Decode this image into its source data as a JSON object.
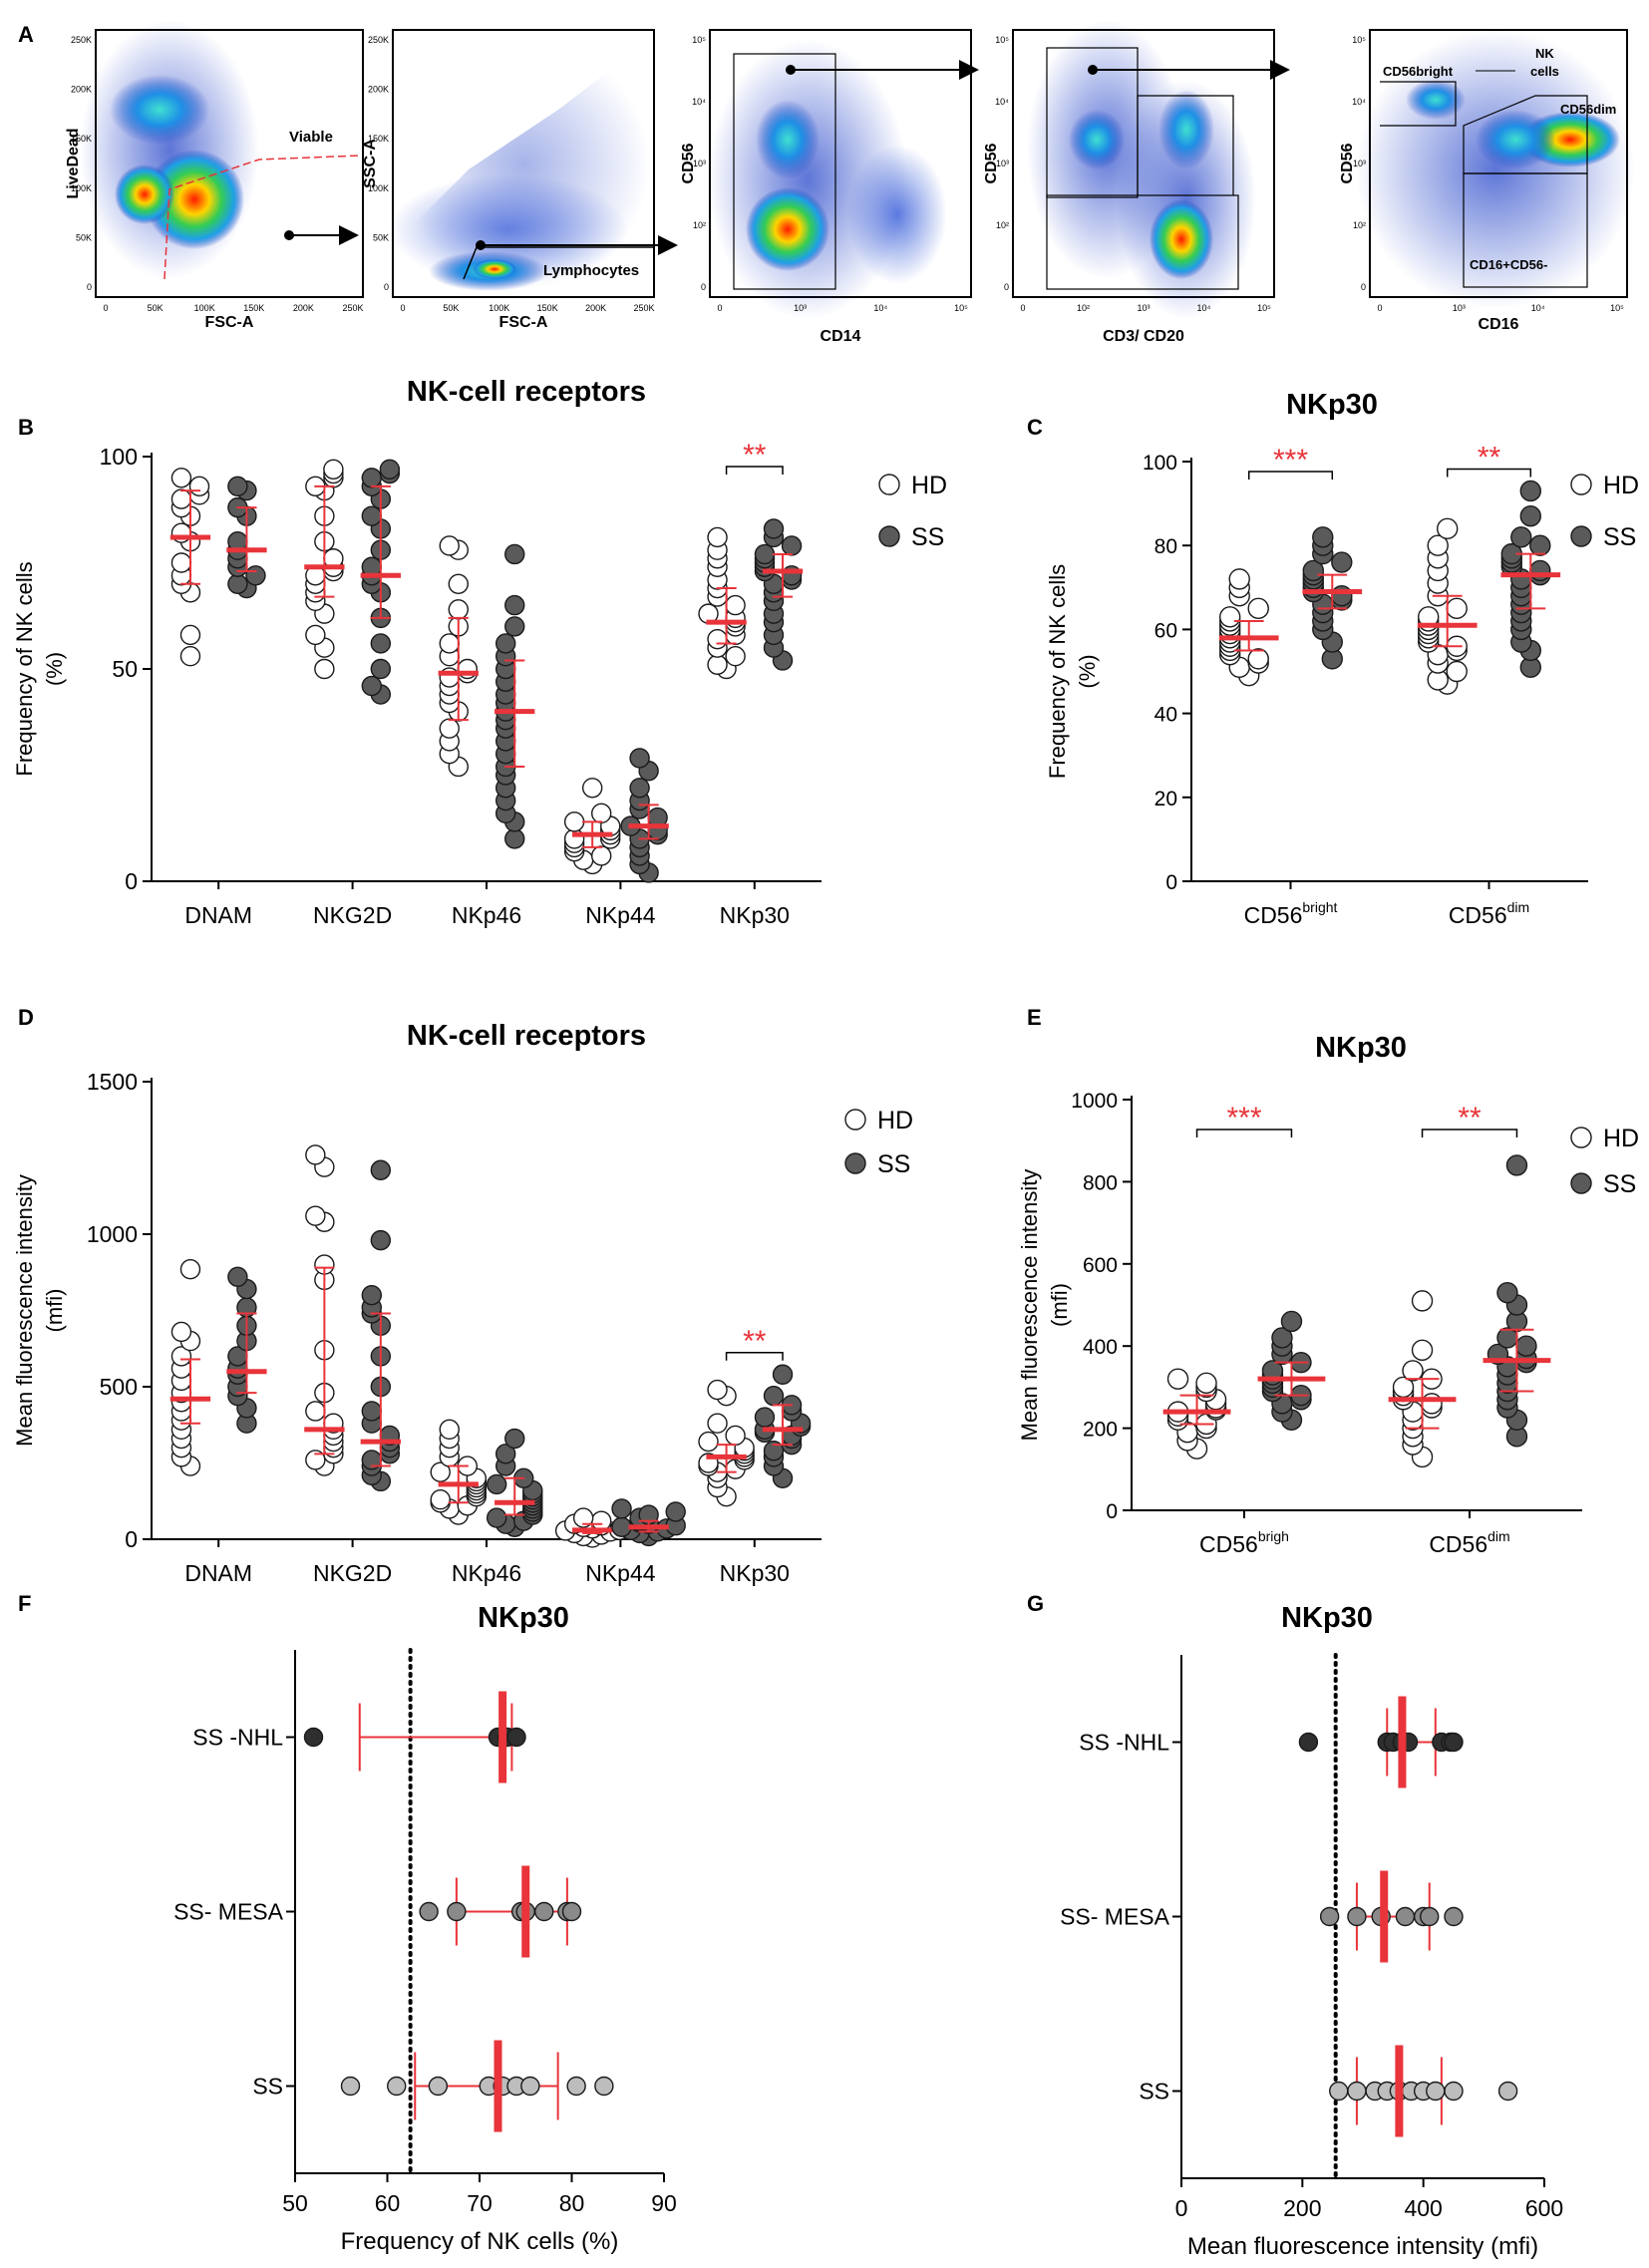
{
  "figure": {
    "panel_letters": {
      "A": "A",
      "B": "B",
      "C": "C",
      "D": "D",
      "E": "E",
      "F": "F",
      "G": "G"
    },
    "colors": {
      "open": "#ffffff",
      "closed": "#5a5a5a",
      "dark": "#2f2f2f",
      "light": "#bdbdbd",
      "mid": "#8a8a8a",
      "red": "#e8343a",
      "axis": "#000000"
    }
  },
  "flow": {
    "plots": [
      {
        "id": "p1",
        "ylabel": "LiveDead",
        "xlabel": "FSC-A",
        "gate_labels": [
          "Viable"
        ],
        "yticks": [
          "250K",
          "200K",
          "150K",
          "100K",
          "50K",
          "0"
        ],
        "xticks": [
          "0",
          "50K",
          "100K",
          "150K",
          "200K",
          "250K"
        ]
      },
      {
        "id": "p2",
        "ylabel": "SSC-A",
        "xlabel": "FSC-A",
        "gate_labels": [
          "Lymphocytes"
        ],
        "yticks": [
          "250K",
          "200K",
          "150K",
          "100K",
          "50K",
          "0"
        ],
        "xticks": [
          "0",
          "50K",
          "100K",
          "150K",
          "200K",
          "250K"
        ]
      },
      {
        "id": "p3",
        "ylabel": "CD56",
        "xlabel": "CD14",
        "gate_labels": [],
        "yticks": [
          "10⁵",
          "10⁴",
          "10³",
          "10²",
          "0"
        ],
        "xticks": [
          "0",
          "10³",
          "10⁴",
          "10⁵"
        ]
      },
      {
        "id": "p4",
        "ylabel": "CD56",
        "xlabel": "CD3/ CD20",
        "gate_labels": [],
        "yticks": [
          "10⁵",
          "10⁴",
          "10³",
          "10²",
          "0"
        ],
        "xticks": [
          "0",
          "10²",
          "10³",
          "10⁴",
          "10⁵"
        ]
      },
      {
        "id": "p5",
        "ylabel": "CD56",
        "xlabel": "CD16",
        "gate_labels": [
          "CD56bright",
          "NK",
          "cells",
          "CD56dim",
          "CD16+CD56-"
        ],
        "yticks": [
          "10⁵",
          "10⁴",
          "10³",
          "10²",
          "0"
        ],
        "xticks": [
          "0",
          "10³",
          "10⁴",
          "10⁵"
        ]
      }
    ]
  },
  "chart_data": [
    {
      "id": "B",
      "type": "scatter",
      "title": "NK-cell receptors",
      "ylabel": [
        "Frequency of NK cells",
        "(%)"
      ],
      "ylim": [
        0,
        100
      ],
      "yticks": [
        0,
        50,
        100
      ],
      "categories": [
        "DNAM",
        "NKG2D",
        "NKp46",
        "NKp44",
        "NKp30"
      ],
      "legend": [
        "HD",
        "SS"
      ],
      "groups": [
        {
          "cat": 0,
          "series": "HD",
          "median": 81,
          "q1": 70,
          "q3": 92,
          "points": [
            95,
            93,
            91,
            90,
            88,
            86,
            82,
            80,
            75,
            72,
            70,
            68,
            58,
            53
          ]
        },
        {
          "cat": 0,
          "series": "SS",
          "median": 78,
          "q1": 73,
          "q3": 88,
          "points": [
            93,
            92,
            88,
            86,
            80,
            78,
            76,
            74,
            72,
            70,
            69
          ]
        },
        {
          "cat": 1,
          "series": "HD",
          "median": 74,
          "q1": 67,
          "q3": 93,
          "points": [
            97,
            96,
            95,
            93,
            92,
            86,
            80,
            76,
            74,
            73,
            72,
            70,
            68,
            66,
            63,
            58,
            55,
            50
          ]
        },
        {
          "cat": 1,
          "series": "SS",
          "median": 72,
          "q1": 62,
          "q3": 93,
          "points": [
            97,
            96,
            95,
            93,
            90,
            86,
            83,
            78,
            74,
            72,
            70,
            68,
            62,
            56,
            50,
            46,
            44
          ]
        },
        {
          "cat": 2,
          "series": "HD",
          "median": 49,
          "q1": 38,
          "q3": 62,
          "points": [
            79,
            78,
            70,
            64,
            60,
            56,
            53,
            50,
            49,
            48,
            46,
            44,
            42,
            40,
            36,
            33,
            30,
            27
          ]
        },
        {
          "cat": 2,
          "series": "SS",
          "median": 40,
          "q1": 27,
          "q3": 52,
          "points": [
            77,
            65,
            60,
            56,
            53,
            50,
            47,
            44,
            42,
            40,
            38,
            36,
            33,
            30,
            27,
            25,
            22,
            19,
            16,
            14,
            10
          ]
        },
        {
          "cat": 3,
          "series": "HD",
          "median": 11,
          "q1": 8,
          "q3": 14,
          "points": [
            22,
            16,
            14,
            13,
            12,
            11,
            10,
            10,
            9,
            8,
            7,
            6,
            5,
            4
          ]
        },
        {
          "cat": 3,
          "series": "SS",
          "median": 13,
          "q1": 10,
          "q3": 18,
          "points": [
            29,
            26,
            22,
            19,
            17,
            15,
            13,
            12,
            11,
            10,
            8,
            6,
            4,
            2
          ]
        },
        {
          "cat": 4,
          "series": "HD",
          "median": 61,
          "q1": 56,
          "q3": 69,
          "points": [
            81,
            78,
            76,
            74,
            71,
            69,
            67,
            65,
            63,
            62,
            61,
            60,
            58,
            57,
            55,
            53,
            51,
            50
          ]
        },
        {
          "cat": 4,
          "series": "SS",
          "median": 73,
          "q1": 67,
          "q3": 77,
          "points": [
            83,
            81,
            79,
            77,
            76,
            75,
            74,
            73,
            72,
            71,
            70,
            68,
            66,
            63,
            61,
            58,
            55,
            52
          ]
        }
      ],
      "significance": [
        {
          "cat": 4,
          "label": "**"
        }
      ]
    },
    {
      "id": "C",
      "type": "scatter",
      "title": "NKp30",
      "ylabel": [
        "Frequency of NK cells",
        "(%)"
      ],
      "ylim": [
        0,
        100
      ],
      "yticks": [
        0,
        20,
        40,
        60,
        80,
        100
      ],
      "categories": [
        {
          "base": "CD56",
          "sup": "bright"
        },
        {
          "base": "CD56",
          "sup": "dim"
        }
      ],
      "legend": [
        "HD",
        "SS"
      ],
      "groups": [
        {
          "cat": 0,
          "series": "HD",
          "median": 58,
          "q1": 55,
          "q3": 62,
          "points": [
            72,
            70,
            68,
            65,
            63,
            62,
            61,
            60,
            59,
            58,
            57,
            56,
            55,
            54,
            53,
            52,
            51,
            49
          ]
        },
        {
          "cat": 0,
          "series": "SS",
          "median": 69,
          "q1": 65,
          "q3": 73,
          "points": [
            82,
            80,
            78,
            76,
            74,
            73,
            72,
            71,
            70,
            69,
            68,
            67,
            66,
            64,
            62,
            60,
            57,
            53
          ]
        },
        {
          "cat": 1,
          "series": "HD",
          "median": 61,
          "q1": 56,
          "q3": 68,
          "points": [
            84,
            80,
            77,
            74,
            71,
            68,
            65,
            63,
            62,
            61,
            60,
            59,
            58,
            57,
            56,
            55,
            54,
            52,
            50,
            48,
            47
          ]
        },
        {
          "cat": 1,
          "series": "SS",
          "median": 73,
          "q1": 65,
          "q3": 78,
          "points": [
            93,
            87,
            82,
            80,
            78,
            77,
            76,
            75,
            74,
            73,
            72,
            70,
            68,
            66,
            64,
            62,
            60,
            57,
            55,
            51
          ]
        }
      ],
      "significance": [
        {
          "cat": 0,
          "label": "***"
        },
        {
          "cat": 1,
          "label": "**"
        }
      ]
    },
    {
      "id": "D",
      "type": "scatter",
      "title": "NK-cell receptors",
      "ylabel": [
        "Mean fluorescence intensity",
        "(mfi)"
      ],
      "ylim": [
        0,
        1500
      ],
      "yticks": [
        0,
        500,
        1000,
        1500
      ],
      "categories": [
        "DNAM",
        "NKG2D",
        "NKp46",
        "NKp44",
        "NKp30"
      ],
      "legend": [
        "HD",
        "SS"
      ],
      "groups": [
        {
          "cat": 0,
          "series": "HD",
          "median": 460,
          "q1": 380,
          "q3": 590,
          "points": [
            885,
            680,
            650,
            600,
            560,
            520,
            480,
            450,
            420,
            390,
            360,
            330,
            300,
            270,
            240
          ]
        },
        {
          "cat": 0,
          "series": "SS",
          "median": 550,
          "q1": 480,
          "q3": 740,
          "points": [
            860,
            820,
            760,
            700,
            650,
            600,
            560,
            540,
            500,
            470,
            430,
            380
          ]
        },
        {
          "cat": 1,
          "series": "HD",
          "median": 360,
          "q1": 280,
          "q3": 890,
          "points": [
            1260,
            1220,
            1060,
            1040,
            900,
            850,
            620,
            480,
            420,
            380,
            360,
            340,
            320,
            300,
            280,
            260,
            240
          ]
        },
        {
          "cat": 1,
          "series": "SS",
          "median": 320,
          "q1": 240,
          "q3": 740,
          "points": [
            1210,
            980,
            800,
            760,
            740,
            700,
            600,
            500,
            420,
            380,
            340,
            320,
            300,
            280,
            260,
            240,
            210,
            190
          ]
        },
        {
          "cat": 2,
          "series": "HD",
          "median": 180,
          "q1": 120,
          "q3": 240,
          "points": [
            360,
            330,
            300,
            270,
            240,
            220,
            200,
            190,
            180,
            170,
            160,
            150,
            140,
            130,
            120,
            110,
            100,
            80
          ]
        },
        {
          "cat": 2,
          "series": "SS",
          "median": 120,
          "q1": 80,
          "q3": 200,
          "points": [
            330,
            280,
            240,
            200,
            180,
            160,
            150,
            140,
            130,
            120,
            110,
            100,
            90,
            80,
            70,
            60,
            50,
            40
          ]
        },
        {
          "cat": 3,
          "series": "HD",
          "median": 30,
          "q1": 20,
          "q3": 50,
          "points": [
            70,
            60,
            50,
            45,
            40,
            35,
            30,
            28,
            25,
            20,
            15,
            10,
            5
          ]
        },
        {
          "cat": 3,
          "series": "SS",
          "median": 40,
          "q1": 25,
          "q3": 60,
          "points": [
            100,
            90,
            80,
            70,
            60,
            55,
            50,
            45,
            40,
            35,
            30,
            25,
            20,
            10
          ]
        },
        {
          "cat": 4,
          "series": "HD",
          "median": 270,
          "q1": 220,
          "q3": 310,
          "points": [
            490,
            470,
            380,
            340,
            320,
            300,
            290,
            280,
            270,
            260,
            250,
            240,
            230,
            220,
            200,
            170,
            140
          ]
        },
        {
          "cat": 4,
          "series": "SS",
          "median": 360,
          "q1": 310,
          "q3": 440,
          "points": [
            540,
            470,
            440,
            420,
            400,
            380,
            370,
            360,
            350,
            340,
            330,
            310,
            290,
            270,
            240,
            200
          ]
        }
      ],
      "significance": [
        {
          "cat": 4,
          "label": "**"
        }
      ]
    },
    {
      "id": "E",
      "type": "scatter",
      "title": "NKp30",
      "ylabel": [
        "Mean fluorescence intensity",
        "(mfi)"
      ],
      "ylim": [
        0,
        1000
      ],
      "yticks": [
        0,
        200,
        400,
        600,
        800,
        1000
      ],
      "categories": [
        {
          "base": "CD56",
          "sup": "brigh"
        },
        {
          "base": "CD56",
          "sup": "dim"
        }
      ],
      "legend": [
        "HD",
        "SS"
      ],
      "groups": [
        {
          "cat": 0,
          "series": "HD",
          "median": 240,
          "q1": 210,
          "q3": 280,
          "points": [
            320,
            310,
            300,
            290,
            270,
            260,
            250,
            245,
            240,
            230,
            220,
            210,
            200,
            190,
            170,
            150
          ]
        },
        {
          "cat": 0,
          "series": "SS",
          "median": 320,
          "q1": 280,
          "q3": 360,
          "points": [
            460,
            420,
            400,
            380,
            360,
            340,
            330,
            320,
            310,
            300,
            290,
            280,
            270,
            260,
            240,
            220
          ]
        },
        {
          "cat": 1,
          "series": "HD",
          "median": 270,
          "q1": 200,
          "q3": 320,
          "points": [
            510,
            390,
            340,
            320,
            300,
            290,
            280,
            270,
            260,
            250,
            240,
            220,
            200,
            180,
            160,
            130
          ]
        },
        {
          "cat": 1,
          "series": "SS",
          "median": 365,
          "q1": 290,
          "q3": 440,
          "points": [
            840,
            530,
            500,
            460,
            420,
            400,
            380,
            370,
            360,
            350,
            330,
            310,
            290,
            270,
            250,
            220,
            180
          ]
        }
      ],
      "significance": [
        {
          "cat": 0,
          "label": "***"
        },
        {
          "cat": 1,
          "label": "**"
        }
      ]
    },
    {
      "id": "F",
      "type": "scatter",
      "orientation": "horizontal",
      "title": "NKp30",
      "xlabel": "Frequency of NK cells (%)",
      "xlim": [
        50,
        90
      ],
      "xticks": [
        50,
        60,
        70,
        80,
        90
      ],
      "reference_line": 62.5,
      "groups": [
        {
          "label": "SS -NHL",
          "shade": "dark",
          "median": 72.5,
          "q1": 57,
          "q3": 73.5,
          "points": [
            52,
            72,
            73,
            74
          ]
        },
        {
          "label": "SS- MESA",
          "shade": "mid",
          "median": 75,
          "q1": 67.5,
          "q3": 79.5,
          "points": [
            64.5,
            67.5,
            74.5,
            75,
            77,
            79.5,
            80
          ]
        },
        {
          "label": "SS",
          "shade": "light",
          "median": 72,
          "q1": 63,
          "q3": 78.5,
          "points": [
            56,
            61,
            65.5,
            71,
            72.5,
            74,
            75.5,
            80.5,
            83.5
          ]
        }
      ]
    },
    {
      "id": "G",
      "type": "scatter",
      "orientation": "horizontal",
      "title": "NKp30",
      "xlabel": "Mean fluorescence intensity (mfi)",
      "xlim": [
        0,
        600
      ],
      "xticks": [
        0,
        200,
        400,
        600
      ],
      "reference_line": 255,
      "groups": [
        {
          "label": "SS -NHL",
          "shade": "dark",
          "median": 365,
          "q1": 340,
          "q3": 420,
          "points": [
            210,
            340,
            350,
            365,
            375,
            430,
            445,
            450
          ]
        },
        {
          "label": "SS- MESA",
          "shade": "mid",
          "median": 335,
          "q1": 290,
          "q3": 410,
          "points": [
            245,
            290,
            330,
            370,
            400,
            410,
            450
          ]
        },
        {
          "label": "SS",
          "shade": "light",
          "median": 360,
          "q1": 290,
          "q3": 430,
          "points": [
            260,
            290,
            320,
            340,
            360,
            380,
            400,
            420,
            450,
            540
          ]
        }
      ]
    }
  ]
}
